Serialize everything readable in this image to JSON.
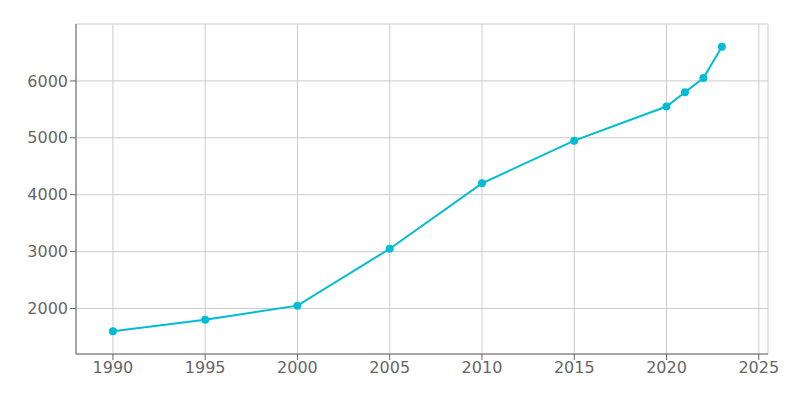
{
  "chart_data": {
    "type": "line",
    "x": [
      1990,
      1995,
      2000,
      2005,
      2010,
      2015,
      2020,
      2021,
      2022,
      2023
    ],
    "values": [
      1600,
      1800,
      2050,
      3050,
      4200,
      4950,
      5550,
      5800,
      6050,
      6600
    ],
    "color": "#00BCD4",
    "marker": "circle",
    "xlim": [
      1988,
      2025.5
    ],
    "ylim": [
      1200,
      7000
    ],
    "xticks": [
      1990,
      1995,
      2000,
      2005,
      2010,
      2015,
      2020,
      2025
    ],
    "yticks": [
      2000,
      3000,
      4000,
      5000,
      6000
    ],
    "grid": true
  }
}
